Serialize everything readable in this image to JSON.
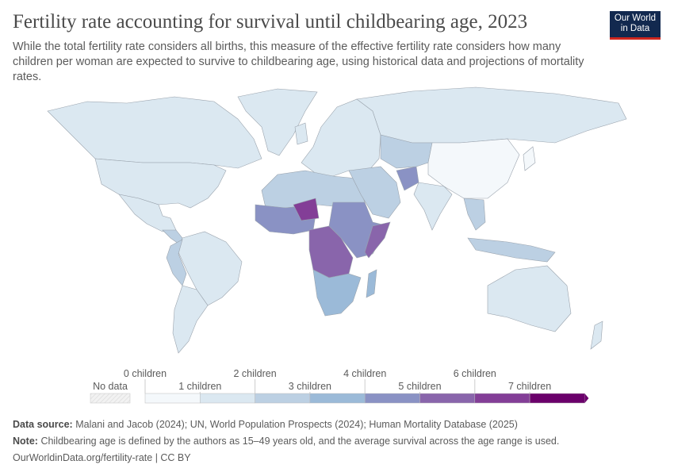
{
  "title": "Fertility rate accounting for survival until childbearing age, 2023",
  "subtitle": "While the total fertility rate considers all births, this measure of the effective fertility rate considers how many children per woman are expected to survive to childbearing age, using historical data and projections of mortality rates.",
  "logo": "Our World in Data",
  "legend": {
    "no_data": "No data",
    "labels": [
      "0 children",
      "1 children",
      "2 children",
      "3 children",
      "4 children",
      "5 children",
      "6 children",
      "7 children"
    ],
    "colors": [
      "#f4f8fb",
      "#dbe8f1",
      "#bcd0e3",
      "#9bbad8",
      "#8a92c4",
      "#8965ab",
      "#833e97",
      "#6b006b"
    ],
    "no_data_color": "#e8e8e8"
  },
  "footer": {
    "source_label": "Data source:",
    "source": "Malani and Jacob (2024); UN, World Population Prospects (2024); Human Mortality Database (2025)",
    "note_label": "Note:",
    "note": "Childbearing age is defined by the authors as 15–49 years old, and the average survival across the age range is used.",
    "url": "OurWorldinData.org/fertility-rate | CC BY"
  }
}
